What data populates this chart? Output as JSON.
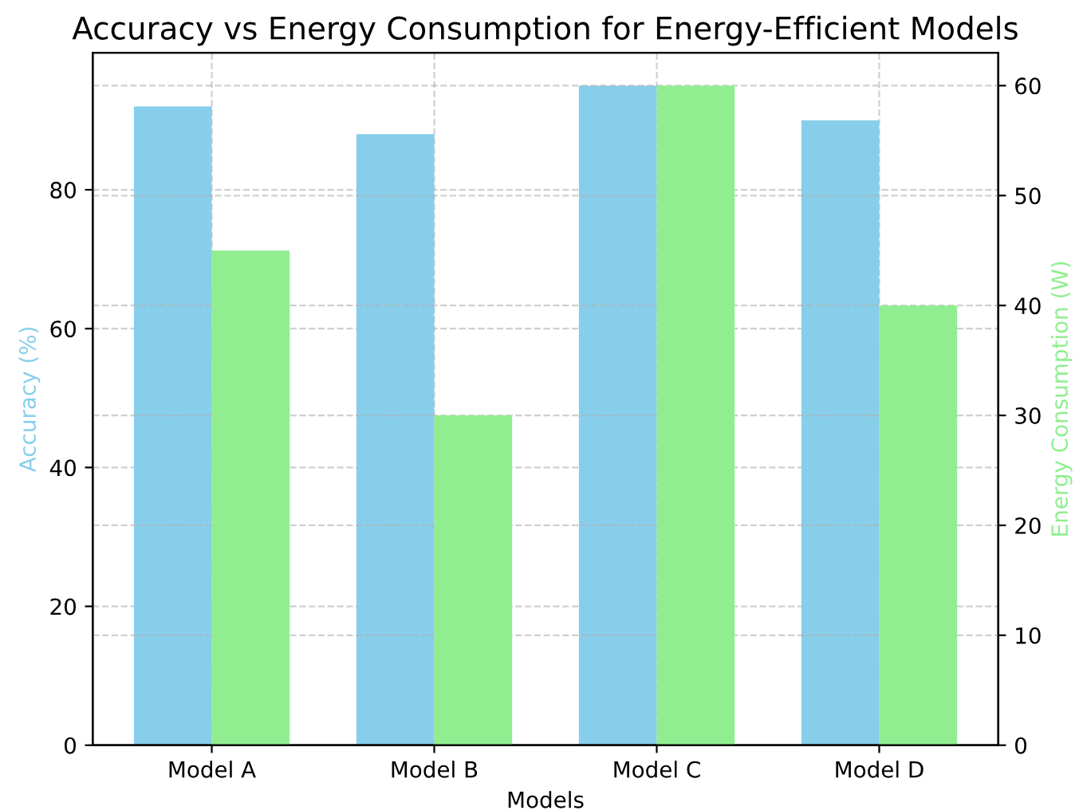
{
  "chart_data": {
    "type": "bar",
    "title": "Accuracy vs Energy Consumption for Energy-Efficient Models",
    "xlabel": "Models",
    "ylabel": "Accuracy (%)",
    "y2label": "Energy Consumption (W)",
    "categories": [
      "Model A",
      "Model B",
      "Model C",
      "Model D"
    ],
    "series": [
      {
        "color": "#87ceeb",
        "values": [
          92,
          88,
          95,
          90
        ]
      },
      {
        "color": "#90ee90",
        "values": [
          45,
          30,
          60,
          40
        ],
        "axis": "y2"
      }
    ],
    "ylim": [
      0,
      99.75
    ],
    "yticks": [
      0,
      20,
      40,
      60,
      80
    ],
    "y2lim": [
      0,
      63
    ],
    "y2ticks": [
      0,
      10,
      20,
      30,
      40,
      50,
      60
    ],
    "grid": true
  }
}
